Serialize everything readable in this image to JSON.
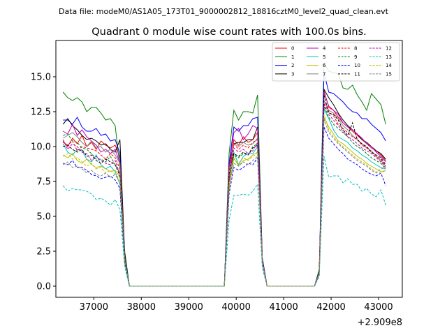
{
  "chart_data": {
    "type": "line",
    "suptitle": "Data file: modeM0/AS1A05_173T01_9000002812_18816cztM0_level2_quad_clean.evt",
    "title": "Quadrant 0 module wise count rates with 100.0s bins.",
    "xlabel": "",
    "ylabel": "",
    "x_offset_label": "+2.909e8",
    "xlim": [
      36200,
      43500
    ],
    "ylim": [
      -0.8,
      17.6
    ],
    "xticks": [
      37000,
      38000,
      39000,
      40000,
      41000,
      42000,
      43000
    ],
    "xtick_labels": [
      "37000",
      "38000",
      "39000",
      "40000",
      "41000",
      "42000",
      "43000"
    ],
    "yticks": [
      0.0,
      2.5,
      5.0,
      7.5,
      10.0,
      12.5,
      15.0
    ],
    "ytick_labels": [
      "0.0",
      "2.5",
      "5.0",
      "7.5",
      "10.0",
      "12.5",
      "15.0"
    ],
    "legend_position": "top-right",
    "x": [
      36350,
      36450,
      36550,
      36650,
      36750,
      36850,
      36950,
      37050,
      37150,
      37250,
      37350,
      37450,
      37550,
      37650,
      37750,
      37850,
      37950,
      38050,
      38150,
      38250,
      38350,
      38450,
      38550,
      38650,
      38750,
      38850,
      38950,
      39050,
      39150,
      39250,
      39350,
      39450,
      39550,
      39650,
      39750,
      39850,
      39950,
      40050,
      40150,
      40250,
      40350,
      40450,
      40550,
      40650,
      40750,
      40850,
      40950,
      41050,
      41150,
      41250,
      41350,
      41450,
      41550,
      41650,
      41750,
      41850,
      41950,
      42050,
      42150,
      42250,
      42350,
      42450,
      42550,
      42650,
      42750,
      42850,
      42950,
      43050,
      43150
    ],
    "series": [
      {
        "name": "0",
        "color": "#ff0000",
        "dash": "solid",
        "values": [
          10.4,
          10.0,
          10.6,
          10.2,
          10.8,
          10.0,
          10.3,
          9.8,
          10.4,
          10.1,
          9.9,
          10.1,
          9.2,
          2.0,
          0,
          0,
          0,
          0,
          0,
          0,
          0,
          0,
          0,
          0,
          0,
          0,
          0,
          0,
          0,
          0,
          0,
          0,
          0,
          0,
          0,
          7.5,
          10.5,
          10.1,
          10.7,
          10.3,
          10.5,
          11.0,
          1.8,
          0,
          0,
          0,
          0,
          0,
          0,
          0,
          0,
          0,
          0,
          0,
          1.0,
          14.0,
          12.8,
          12.6,
          12.1,
          11.7,
          11.4,
          11.1,
          10.8,
          10.5,
          10.2,
          9.9,
          9.7,
          9.4,
          9.0
        ]
      },
      {
        "name": "1",
        "color": "#008000",
        "dash": "solid",
        "values": [
          13.9,
          13.5,
          13.3,
          13.5,
          13.2,
          12.5,
          12.8,
          12.8,
          12.4,
          11.9,
          12.0,
          11.5,
          8.5,
          2.5,
          0,
          0,
          0,
          0,
          0,
          0,
          0,
          0,
          0,
          0,
          0,
          0,
          0,
          0,
          0,
          0,
          0,
          0,
          0,
          0,
          0,
          9.5,
          12.6,
          11.9,
          12.5,
          12.5,
          12.4,
          13.7,
          2.0,
          0,
          0,
          0,
          0,
          0,
          0,
          0,
          0,
          0,
          0,
          0,
          1.2,
          16.0,
          15.4,
          15.3,
          15.2,
          14.2,
          14.1,
          14.4,
          13.7,
          13.2,
          12.6,
          13.8,
          13.4,
          13.0,
          11.6
        ]
      },
      {
        "name": "2",
        "color": "#0000ff",
        "dash": "solid",
        "values": [
          11.9,
          11.9,
          11.6,
          12.1,
          11.4,
          11.1,
          11.1,
          11.3,
          10.8,
          10.9,
          10.4,
          10.5,
          9.5,
          2.3,
          0,
          0,
          0,
          0,
          0,
          0,
          0,
          0,
          0,
          0,
          0,
          0,
          0,
          0,
          0,
          0,
          0,
          0,
          0,
          0,
          0,
          8.8,
          11.4,
          11.1,
          11.5,
          11.5,
          12.0,
          12.1,
          2.0,
          0,
          0,
          0,
          0,
          0,
          0,
          0,
          0,
          0,
          0,
          0,
          1.1,
          15.3,
          13.9,
          13.8,
          13.5,
          13.2,
          12.8,
          12.5,
          12.4,
          12.0,
          12.0,
          11.6,
          11.3,
          11.0,
          10.4
        ]
      },
      {
        "name": "3",
        "color": "#000000",
        "dash": "solid",
        "values": [
          11.6,
          12.0,
          11.5,
          11.2,
          10.8,
          10.5,
          10.6,
          10.4,
          10.1,
          10.2,
          9.8,
          9.6,
          10.5,
          2.4,
          0,
          0,
          0,
          0,
          0,
          0,
          0,
          0,
          0,
          0,
          0,
          0,
          0,
          0,
          0,
          0,
          0,
          0,
          0,
          0,
          0,
          8.6,
          10.2,
          10.3,
          10.3,
          10.5,
          10.5,
          11.4,
          1.9,
          0,
          0,
          0,
          0,
          0,
          0,
          0,
          0,
          0,
          0,
          0,
          1.1,
          14.1,
          13.5,
          13.0,
          12.4,
          11.9,
          11.5,
          11.2,
          10.9,
          10.5,
          10.3,
          10.0,
          9.7,
          9.5,
          9.1
        ]
      },
      {
        "name": "4",
        "color": "#bf00bf",
        "dash": "solid",
        "values": [
          11.1,
          10.9,
          11.6,
          10.8,
          11.2,
          10.7,
          10.4,
          10.1,
          9.6,
          9.8,
          9.5,
          9.8,
          8.8,
          2.0,
          0,
          0,
          0,
          0,
          0,
          0,
          0,
          0,
          0,
          0,
          0,
          0,
          0,
          0,
          0,
          0,
          0,
          0,
          0,
          0,
          0,
          8.5,
          11.0,
          11.3,
          10.5,
          10.9,
          11.5,
          11.3,
          1.8,
          0,
          0,
          0,
          0,
          0,
          0,
          0,
          0,
          0,
          0,
          0,
          1.0,
          13.9,
          12.9,
          12.6,
          12.3,
          11.7,
          11.4,
          11.2,
          10.9,
          10.6,
          10.2,
          10.0,
          9.6,
          9.3,
          8.9
        ]
      },
      {
        "name": "5",
        "color": "#00bfbf",
        "dash": "solid",
        "values": [
          10.2,
          9.6,
          9.4,
          9.8,
          9.7,
          9.1,
          8.9,
          9.4,
          8.7,
          8.4,
          8.6,
          8.2,
          7.3,
          1.9,
          0,
          0,
          0,
          0,
          0,
          0,
          0,
          0,
          0,
          0,
          0,
          0,
          0,
          0,
          0,
          0,
          0,
          0,
          0,
          0,
          0,
          7.9,
          9.6,
          8.7,
          9.3,
          9.5,
          9.5,
          10.0,
          1.7,
          0,
          0,
          0,
          0,
          0,
          0,
          0,
          0,
          0,
          0,
          0,
          0.9,
          12.7,
          12.0,
          11.2,
          10.7,
          10.5,
          10.3,
          9.9,
          9.7,
          9.4,
          9.2,
          8.9,
          8.7,
          8.5,
          8.4
        ]
      },
      {
        "name": "6",
        "color": "#bfbf00",
        "dash": "solid",
        "values": [
          9.4,
          9.2,
          9.5,
          9.0,
          8.8,
          9.1,
          8.7,
          8.5,
          8.6,
          8.4,
          8.2,
          8.3,
          7.8,
          1.9,
          0,
          0,
          0,
          0,
          0,
          0,
          0,
          0,
          0,
          0,
          0,
          0,
          0,
          0,
          0,
          0,
          0,
          0,
          0,
          0,
          0,
          6.9,
          9.2,
          8.6,
          9.0,
          9.1,
          9.4,
          9.6,
          1.7,
          0,
          0,
          0,
          0,
          0,
          0,
          0,
          0,
          0,
          0,
          0,
          0.9,
          12.1,
          11.4,
          10.9,
          10.4,
          10.2,
          9.9,
          9.6,
          9.3,
          9.1,
          8.8,
          8.6,
          8.4,
          8.2,
          8.3
        ]
      },
      {
        "name": "7",
        "color": "#808080",
        "dash": "solid",
        "values": [
          10.6,
          10.8,
          11.0,
          10.7,
          10.3,
          10.0,
          10.4,
          9.9,
          10.0,
          9.6,
          9.8,
          9.4,
          8.8,
          2.1,
          0,
          0,
          0,
          0,
          0,
          0,
          0,
          0,
          0,
          0,
          0,
          0,
          0,
          0,
          0,
          0,
          0,
          0,
          0,
          0,
          0,
          8.3,
          10.2,
          10.0,
          10.3,
          10.1,
          10.2,
          10.6,
          1.8,
          0,
          0,
          0,
          0,
          0,
          0,
          0,
          0,
          0,
          0,
          0,
          1.0,
          13.3,
          12.6,
          12.4,
          12.0,
          11.5,
          11.2,
          10.8,
          10.5,
          10.2,
          9.9,
          9.7,
          9.3,
          9.0,
          8.6
        ]
      },
      {
        "name": "8",
        "color": "#ff0000",
        "dash": "dashed",
        "values": [
          10.3,
          10.1,
          10.4,
          9.7,
          10.0,
          9.9,
          9.8,
          9.7,
          9.4,
          9.1,
          9.5,
          9.2,
          8.4,
          2.0,
          0,
          0,
          0,
          0,
          0,
          0,
          0,
          0,
          0,
          0,
          0,
          0,
          0,
          0,
          0,
          0,
          0,
          0,
          0,
          0,
          0,
          8.2,
          10.2,
          9.8,
          10.1,
          9.9,
          10.3,
          10.5,
          1.8,
          0,
          0,
          0,
          0,
          0,
          0,
          0,
          0,
          0,
          0,
          0,
          1.0,
          13.1,
          12.5,
          12.2,
          11.6,
          11.3,
          11.0,
          10.7,
          10.5,
          10.1,
          9.9,
          9.6,
          9.3,
          9.1,
          8.6
        ]
      },
      {
        "name": "9",
        "color": "#008000",
        "dash": "dashed",
        "values": [
          10.8,
          10.9,
          10.4,
          10.3,
          9.9,
          9.8,
          9.5,
          9.1,
          9.1,
          8.9,
          9.3,
          8.7,
          8.1,
          2.0,
          0,
          0,
          0,
          0,
          0,
          0,
          0,
          0,
          0,
          0,
          0,
          0,
          0,
          0,
          0,
          0,
          0,
          0,
          0,
          0,
          0,
          7.5,
          9.4,
          9.2,
          9.5,
          9.4,
          10.0,
          10.2,
          1.8,
          0,
          0,
          0,
          0,
          0,
          0,
          0,
          0,
          0,
          0,
          0,
          1.0,
          12.9,
          12.1,
          11.6,
          11.3,
          11.0,
          10.7,
          10.3,
          10.0,
          9.8,
          9.5,
          9.2,
          9.0,
          8.8,
          8.4
        ]
      },
      {
        "name": "10",
        "color": "#0000ff",
        "dash": "dashed",
        "values": [
          8.8,
          8.7,
          9.0,
          8.5,
          8.5,
          8.3,
          8.0,
          7.9,
          7.7,
          7.8,
          7.9,
          7.6,
          7.0,
          1.7,
          0,
          0,
          0,
          0,
          0,
          0,
          0,
          0,
          0,
          0,
          0,
          0,
          0,
          0,
          0,
          0,
          0,
          0,
          0,
          0,
          0,
          6.6,
          8.5,
          8.3,
          8.5,
          8.8,
          8.7,
          9.2,
          1.6,
          0,
          0,
          0,
          0,
          0,
          0,
          0,
          0,
          0,
          0,
          0,
          0.8,
          11.4,
          10.6,
          10.2,
          9.8,
          9.5,
          9.1,
          8.9,
          8.7,
          8.4,
          8.2,
          8.0,
          7.9,
          8.1,
          7.2
        ]
      },
      {
        "name": "11",
        "color": "#000000",
        "dash": "dashed",
        "values": [
          10.0,
          10.1,
          9.8,
          9.6,
          9.8,
          9.3,
          9.4,
          9.0,
          8.8,
          9.1,
          8.9,
          8.7,
          7.9,
          1.9,
          0,
          0,
          0,
          0,
          0,
          0,
          0,
          0,
          0,
          0,
          0,
          0,
          0,
          0,
          0,
          0,
          0,
          0,
          0,
          0,
          0,
          8.0,
          9.5,
          9.3,
          9.6,
          9.4,
          9.9,
          10.1,
          1.8,
          0,
          0,
          0,
          0,
          0,
          0,
          0,
          0,
          0,
          0,
          0,
          1.0,
          13.7,
          12.4,
          12.3,
          11.9,
          11.2,
          10.8,
          11.7,
          10.5,
          10.2,
          10.0,
          9.6,
          9.4,
          9.2,
          8.7
        ]
      },
      {
        "name": "12",
        "color": "#bf00bf",
        "dash": "dashed",
        "values": [
          10.5,
          9.8,
          10.2,
          10.0,
          9.6,
          9.5,
          9.0,
          9.3,
          9.0,
          8.8,
          8.7,
          9.0,
          8.0,
          1.9,
          0,
          0,
          0,
          0,
          0,
          0,
          0,
          0,
          0,
          0,
          0,
          0,
          0,
          0,
          0,
          0,
          0,
          0,
          0,
          0,
          0,
          7.8,
          9.9,
          9.6,
          9.8,
          9.5,
          9.7,
          10.3,
          1.8,
          0,
          0,
          0,
          0,
          0,
          0,
          0,
          0,
          0,
          0,
          0,
          1.0,
          13.0,
          12.3,
          11.9,
          11.5,
          11.1,
          10.7,
          10.5,
          10.2,
          9.9,
          9.7,
          9.5,
          9.2,
          8.9,
          8.5
        ]
      },
      {
        "name": "13",
        "color": "#00bfbf",
        "dash": "dashed",
        "values": [
          7.2,
          6.8,
          7.0,
          6.9,
          6.9,
          6.8,
          6.6,
          6.2,
          6.3,
          6.1,
          5.8,
          6.2,
          5.5,
          1.4,
          0,
          0,
          0,
          0,
          0,
          0,
          0,
          0,
          0,
          0,
          0,
          0,
          0,
          0,
          0,
          0,
          0,
          0,
          0,
          0,
          0,
          4.7,
          6.5,
          6.5,
          6.6,
          6.5,
          6.8,
          7.3,
          1.3,
          0,
          0,
          0,
          0,
          0,
          0,
          0,
          0,
          0,
          0,
          0,
          0.7,
          9.3,
          7.8,
          7.9,
          7.9,
          7.4,
          7.7,
          7.3,
          7.3,
          6.8,
          7.0,
          6.6,
          6.4,
          6.9,
          5.8
        ]
      },
      {
        "name": "14",
        "color": "#bfbf00",
        "dash": "dashed",
        "values": [
          9.3,
          9.5,
          9.1,
          9.2,
          8.9,
          8.6,
          8.8,
          8.4,
          8.5,
          8.1,
          8.3,
          8.0,
          7.7,
          1.9,
          0,
          0,
          0,
          0,
          0,
          0,
          0,
          0,
          0,
          0,
          0,
          0,
          0,
          0,
          0,
          0,
          0,
          0,
          0,
          0,
          0,
          7.3,
          9.1,
          8.8,
          9.2,
          9.0,
          9.3,
          9.5,
          1.7,
          0,
          0,
          0,
          0,
          0,
          0,
          0,
          0,
          0,
          0,
          0,
          0.9,
          12.3,
          11.2,
          10.7,
          10.3,
          10.0,
          9.7,
          9.4,
          9.1,
          8.9,
          8.7,
          8.4,
          8.2,
          8.1,
          8.3
        ]
      },
      {
        "name": "15",
        "color": "#808080",
        "dash": "dashed",
        "values": [
          8.7,
          8.9,
          8.5,
          8.6,
          8.4,
          8.1,
          8.3,
          8.0,
          7.9,
          8.1,
          7.8,
          8.0,
          7.4,
          1.8,
          0,
          0,
          0,
          0,
          0,
          0,
          0,
          0,
          0,
          0,
          0,
          0,
          0,
          0,
          0,
          0,
          0,
          0,
          0,
          0,
          0,
          7.2,
          8.8,
          8.6,
          8.9,
          8.7,
          9.0,
          9.3,
          1.7,
          0,
          0,
          0,
          0,
          0,
          0,
          0,
          0,
          0,
          0,
          0,
          0.9,
          12.0,
          11.0,
          10.6,
          10.2,
          9.9,
          9.6,
          9.3,
          9.0,
          8.8,
          8.6,
          8.3,
          8.1,
          8.4,
          8.5
        ]
      }
    ]
  }
}
